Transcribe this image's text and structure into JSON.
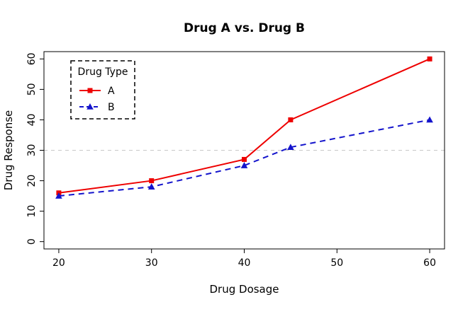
{
  "title": "Drug A vs. Drug B",
  "chart_data": {
    "type": "line",
    "title": "Drug A vs. Drug B",
    "xlabel": "Drug Dosage",
    "ylabel": "Drug Response",
    "x": [
      20,
      30,
      40,
      45,
      60
    ],
    "series": [
      {
        "name": "A",
        "values": [
          16,
          20,
          27,
          40,
          60
        ],
        "color": "#EE0000",
        "line_style": "solid",
        "marker": "square"
      },
      {
        "name": "B",
        "values": [
          15,
          18,
          25,
          31,
          40
        ],
        "color": "#1414CC",
        "line_style": "dashed",
        "marker": "triangle"
      }
    ],
    "x_ticks": [
      20,
      30,
      40,
      50,
      60
    ],
    "y_ticks": [
      0,
      10,
      20,
      30,
      40,
      50,
      60
    ],
    "xlim": [
      20,
      60
    ],
    "ylim": [
      0,
      60
    ],
    "grid": false,
    "reference_line": {
      "y": 30,
      "color": "#C8C8C8",
      "style": "dashed"
    },
    "legend": {
      "title": "Drug Type",
      "position": "top-left",
      "border_style": "dashed"
    },
    "axis_color": "#000000",
    "background": "#FFFFFF"
  }
}
